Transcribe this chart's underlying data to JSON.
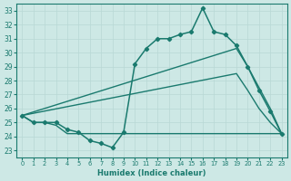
{
  "xlabel": "Humidex (Indice chaleur)",
  "xlim": [
    -0.5,
    23.5
  ],
  "ylim": [
    22.5,
    33.5
  ],
  "xticks": [
    0,
    1,
    2,
    3,
    4,
    5,
    6,
    7,
    8,
    9,
    10,
    11,
    12,
    13,
    14,
    15,
    16,
    17,
    18,
    19,
    20,
    21,
    22,
    23
  ],
  "yticks": [
    23,
    24,
    25,
    26,
    27,
    28,
    29,
    30,
    31,
    32,
    33
  ],
  "bg_color": "#cde8e5",
  "line_color": "#1a7a6e",
  "grid_color": "#b8d8d5",
  "series": [
    {
      "x": [
        0,
        1,
        2,
        3,
        4,
        5,
        6,
        7,
        8,
        9,
        10,
        11,
        12,
        13,
        14,
        15,
        16,
        17,
        18,
        19,
        20,
        21,
        22,
        23
      ],
      "y": [
        25.5,
        25.0,
        25.0,
        25.0,
        24.5,
        24.3,
        23.7,
        23.5,
        23.2,
        24.3,
        29.2,
        30.3,
        31.0,
        31.0,
        31.3,
        31.5,
        33.2,
        31.5,
        31.3,
        30.5,
        29.0,
        27.3,
        25.8,
        24.2
      ],
      "marker": "D",
      "ms": 2.2,
      "lw": 1.1
    },
    {
      "x": [
        0,
        19,
        20,
        21,
        22,
        23
      ],
      "y": [
        25.5,
        30.3,
        29.0,
        27.5,
        26.0,
        24.2
      ],
      "marker": "None",
      "ms": 0,
      "lw": 1.0
    },
    {
      "x": [
        0,
        19,
        20,
        21,
        22,
        23
      ],
      "y": [
        25.5,
        28.5,
        27.3,
        26.0,
        25.0,
        24.2
      ],
      "marker": "None",
      "ms": 0,
      "lw": 1.0
    },
    {
      "x": [
        0,
        1,
        2,
        3,
        4,
        5,
        6,
        7,
        8,
        9,
        10,
        11,
        12,
        13,
        14,
        15,
        16,
        17,
        18,
        19,
        20,
        21,
        22,
        23
      ],
      "y": [
        25.5,
        25.0,
        25.0,
        24.8,
        24.2,
        24.2,
        24.2,
        24.2,
        24.2,
        24.2,
        24.2,
        24.2,
        24.2,
        24.2,
        24.2,
        24.2,
        24.2,
        24.2,
        24.2,
        24.2,
        24.2,
        24.2,
        24.2,
        24.2
      ],
      "marker": "None",
      "ms": 0,
      "lw": 1.0
    }
  ]
}
